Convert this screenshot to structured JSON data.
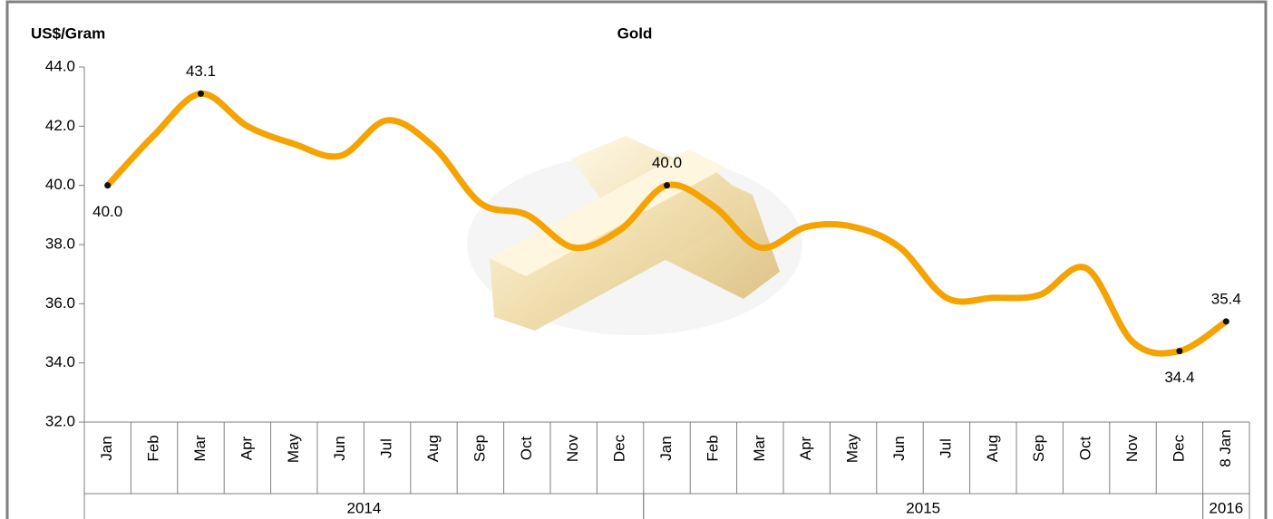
{
  "chart_data": {
    "type": "line",
    "title": "Gold",
    "y_axis_label": "US$/Gram",
    "categories": [
      "Jan",
      "Feb",
      "Mar",
      "Apr",
      "May",
      "Jun",
      "Jul",
      "Aug",
      "Sep",
      "Oct",
      "Nov",
      "Dec",
      "Jan",
      "Feb",
      "Mar",
      "Apr",
      "May",
      "Jun",
      "Jul",
      "Aug",
      "Sep",
      "Oct",
      "Nov",
      "Dec",
      "8 Jan"
    ],
    "category_groups": [
      {
        "label": "2014",
        "count": 12
      },
      {
        "label": "2015",
        "count": 12
      },
      {
        "label": "2016",
        "count": 1
      }
    ],
    "series": [
      {
        "name": "Gold",
        "color": "#f5a300",
        "values": [
          40.0,
          41.7,
          43.1,
          42.0,
          41.4,
          41.0,
          42.2,
          41.3,
          39.4,
          39.0,
          37.9,
          38.5,
          40.0,
          39.3,
          37.9,
          38.6,
          38.6,
          37.9,
          36.2,
          36.2,
          36.3,
          37.2,
          34.7,
          34.4,
          35.4
        ],
        "value_labels": [
          "40.0",
          null,
          "43.1",
          null,
          null,
          null,
          null,
          null,
          null,
          null,
          null,
          null,
          "40.0",
          null,
          null,
          null,
          null,
          null,
          null,
          null,
          null,
          null,
          null,
          "34.4",
          "35.4"
        ]
      }
    ],
    "ylim": [
      32,
      44
    ],
    "yticks": [
      {
        "value": 32,
        "label": "32.0"
      },
      {
        "value": 34,
        "label": "34.0"
      },
      {
        "value": 36,
        "label": "36.0"
      },
      {
        "value": 38,
        "label": "38.0"
      },
      {
        "value": 40,
        "label": "40.0"
      },
      {
        "value": 42,
        "label": "42.0"
      },
      {
        "value": 44,
        "label": "44.0"
      }
    ]
  }
}
